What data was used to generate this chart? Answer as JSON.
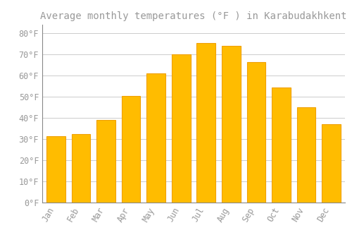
{
  "title": "Average monthly temperatures (°F ) in Karabudakhkent",
  "months": [
    "Jan",
    "Feb",
    "Mar",
    "Apr",
    "May",
    "Jun",
    "Jul",
    "Aug",
    "Sep",
    "Oct",
    "Nov",
    "Dec"
  ],
  "values": [
    31.5,
    32.5,
    39.0,
    50.5,
    61.0,
    70.0,
    75.5,
    74.0,
    66.5,
    54.5,
    45.0,
    37.0
  ],
  "bar_color": "#FFBC00",
  "bar_edge_color": "#F0A000",
  "background_color": "#FFFFFF",
  "grid_color": "#CCCCCC",
  "text_color": "#999999",
  "ylim": [
    0,
    84
  ],
  "yticks": [
    0,
    10,
    20,
    30,
    40,
    50,
    60,
    70,
    80
  ],
  "title_fontsize": 10,
  "tick_fontsize": 8.5,
  "font_family": "monospace"
}
